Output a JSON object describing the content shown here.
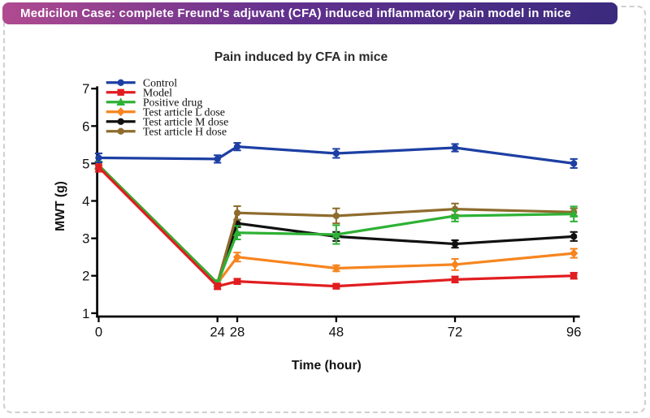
{
  "banner": {
    "text": "Medicilon Case: complete Freund's adjuvant (CFA) induced inflammatory pain model in mice",
    "gradient_left": "#b04a90",
    "gradient_mid": "#63318e",
    "gradient_right": "#3a2a7e",
    "text_color": "#ffffff"
  },
  "card": {
    "background": "#ffffff",
    "border_color": "#cfcfcf"
  },
  "chart_data": {
    "type": "line",
    "title": "Pain induced by CFA in mice",
    "xlabel": "Time (hour)",
    "ylabel": "MWT (g)",
    "x": [
      0,
      24,
      28,
      48,
      72,
      96
    ],
    "xticks": [
      "0",
      "24",
      "28",
      "48",
      "72",
      "96"
    ],
    "yticks": [
      "1",
      "2",
      "3",
      "4",
      "5",
      "6",
      "7"
    ],
    "xlim": [
      0,
      97
    ],
    "ylim": [
      1,
      7
    ],
    "grid": false,
    "legend_position": "top-left",
    "axis_color": "#000000",
    "error_bars": true,
    "series": [
      {
        "name": "Control",
        "color": "#1d3fa3",
        "marker": "circle",
        "values": [
          5.15,
          5.12,
          5.45,
          5.27,
          5.42,
          5.0
        ],
        "errors": [
          0.12,
          0.1,
          0.1,
          0.12,
          0.1,
          0.12
        ]
      },
      {
        "name": "Model",
        "color": "#e11d20",
        "marker": "square",
        "values": [
          4.9,
          1.72,
          1.85,
          1.72,
          1.9,
          2.0
        ],
        "errors": [
          0.12,
          0.08,
          0.07,
          0.06,
          0.08,
          0.08
        ]
      },
      {
        "name": "Positive drug",
        "color": "#2eb135",
        "marker": "triangle",
        "values": [
          4.95,
          1.8,
          3.15,
          3.1,
          3.6,
          3.65
        ],
        "errors": [
          0.1,
          0.08,
          0.18,
          0.25,
          0.15,
          0.2
        ]
      },
      {
        "name": "Test article L dose",
        "color": "#f6851f",
        "marker": "diamond",
        "values": [
          4.95,
          1.8,
          2.5,
          2.2,
          2.3,
          2.6
        ],
        "errors": [
          0.1,
          0.08,
          0.12,
          0.08,
          0.15,
          0.12
        ]
      },
      {
        "name": "Test article M dose",
        "color": "#111111",
        "marker": "circle",
        "values": [
          4.95,
          1.8,
          3.4,
          3.05,
          2.85,
          3.05
        ],
        "errors": [
          0.1,
          0.08,
          0.1,
          0.12,
          0.1,
          0.12
        ]
      },
      {
        "name": "Test article H dose",
        "color": "#8e6c2d",
        "marker": "circle",
        "values": [
          4.95,
          1.8,
          3.68,
          3.6,
          3.78,
          3.7
        ],
        "errors": [
          0.1,
          0.08,
          0.18,
          0.2,
          0.15,
          0.1
        ]
      }
    ],
    "draw_order": [
      4,
      5,
      3,
      2,
      1,
      0
    ]
  }
}
